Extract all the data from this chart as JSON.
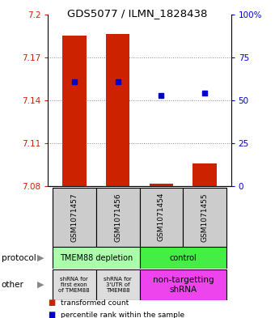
{
  "title": "GDS5077 / ILMN_1828438",
  "samples": [
    "GSM1071457",
    "GSM1071456",
    "GSM1071454",
    "GSM1071455"
  ],
  "ylim_left": [
    7.08,
    7.2
  ],
  "ylim_right": [
    0,
    100
  ],
  "yticks_left": [
    7.08,
    7.11,
    7.14,
    7.17,
    7.2
  ],
  "yticks_right": [
    0,
    25,
    50,
    75,
    100
  ],
  "ytick_labels_right": [
    "0",
    "25",
    "50",
    "75",
    "100%"
  ],
  "bar_bottoms": [
    7.08,
    7.08,
    7.08,
    7.08
  ],
  "bar_tops": [
    7.185,
    7.186,
    7.0815,
    7.096
  ],
  "blue_y": [
    7.153,
    7.153,
    7.143,
    7.145
  ],
  "bar_color": "#cc2200",
  "blue_color": "#0000cc",
  "grid_color": "#888888",
  "protocol_labels": [
    "TMEM88 depletion",
    "control"
  ],
  "protocol_colors": [
    "#aaffaa",
    "#44ee44"
  ],
  "other_label_0": "shRNA for\nfirst exon\nof TMEM88",
  "other_label_1": "shRNA for\n3'UTR of\nTMEM88",
  "other_label_2": "non-targetting\nshRNA",
  "other_colors": [
    "#dddddd",
    "#dddddd",
    "#ee44ee"
  ],
  "legend_red_label": "transformed count",
  "legend_blue_label": "percentile rank within the sample",
  "left_label_color": "#cc2200",
  "right_label_color": "#0000cc",
  "sample_bg": "#cccccc",
  "spine_color": "#000000"
}
